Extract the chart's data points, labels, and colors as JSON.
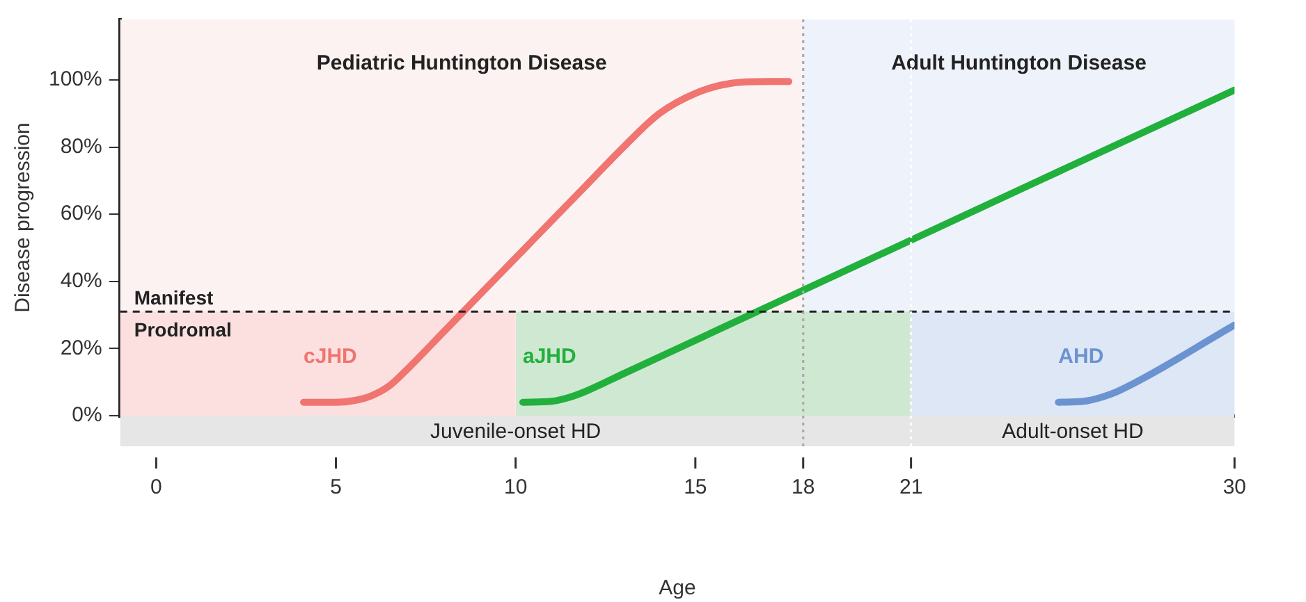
{
  "chart_data": {
    "type": "line",
    "xlabel": "Age",
    "ylabel": "Disease progression",
    "xlim": [
      -1,
      30
    ],
    "xticks": [
      0,
      5,
      10,
      15,
      18,
      21,
      30
    ],
    "ylim": [
      0,
      118
    ],
    "yticks": [
      {
        "value": 0,
        "label": "0%"
      },
      {
        "value": 20,
        "label": "20%"
      },
      {
        "value": 40,
        "label": "40%"
      },
      {
        "value": 60,
        "label": "60%"
      },
      {
        "value": 80,
        "label": "80%"
      },
      {
        "value": 100,
        "label": "100%"
      }
    ],
    "grid": false,
    "legend": false,
    "marker": "none",
    "line_style": "solid",
    "bands": [
      {
        "axis": "x",
        "from": -1,
        "to": 18,
        "label": "Pediatric Huntington Disease",
        "color": "#fdf2f2"
      },
      {
        "axis": "x",
        "from": 18,
        "to": 30,
        "label": "Adult Huntington Disease",
        "color": "#eef3fb"
      }
    ],
    "ref_lines": [
      {
        "axis": "y",
        "value": 31,
        "label": "Manifest",
        "color": "#222222",
        "line_style": "dashed"
      },
      {
        "axis": "x",
        "value": 18,
        "color": "#aaaaaa",
        "line_style": "dotted"
      },
      {
        "axis": "x",
        "value": 21,
        "color": "#ffffff",
        "line_style": "dotted"
      }
    ],
    "annotations": [
      "Prodromal",
      "Juvenile-onset HD",
      "Adult-onset HD"
    ],
    "series": [
      {
        "type": "area",
        "color": "#fce0e0",
        "x": [
          -1,
          10
        ],
        "values": [
          31,
          31
        ]
      },
      {
        "type": "area",
        "color": "#cfe8d2",
        "x": [
          10,
          21
        ],
        "values": [
          31,
          31
        ]
      },
      {
        "type": "area",
        "color": "#dde7f5",
        "x": [
          21,
          30
        ],
        "values": [
          31,
          31
        ]
      },
      {
        "name": "cJHD",
        "color": "#f07470",
        "x": [
          4.1,
          5,
          5.5,
          6,
          6.5,
          7,
          8,
          9,
          10,
          11,
          12,
          13,
          14,
          15,
          16,
          17,
          17.6
        ],
        "values": [
          4,
          4,
          4.5,
          6,
          9,
          14,
          25,
          36,
          47,
          58,
          69,
          80,
          90,
          96,
          99,
          99.5,
          99.5
        ]
      },
      {
        "name": "aJHD",
        "color": "#22b03c",
        "x": [
          10.2,
          11,
          11.5,
          12,
          13,
          30
        ],
        "values": [
          4,
          4.3,
          5.5,
          7.5,
          12.5,
          97
        ]
      },
      {
        "name": "AHD",
        "color": "#6b93d0",
        "x": [
          25.1,
          25.8,
          26.3,
          26.8,
          30
        ],
        "values": [
          4,
          4.3,
          5.5,
          7.5,
          27
        ]
      }
    ]
  }
}
